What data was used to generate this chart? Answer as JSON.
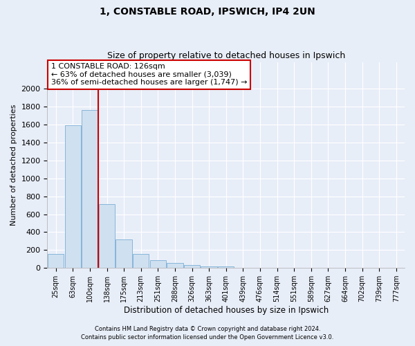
{
  "title1": "1, CONSTABLE ROAD, IPSWICH, IP4 2UN",
  "title2": "Size of property relative to detached houses in Ipswich",
  "xlabel": "Distribution of detached houses by size in Ipswich",
  "ylabel": "Number of detached properties",
  "categories": [
    "25sqm",
    "63sqm",
    "100sqm",
    "138sqm",
    "175sqm",
    "213sqm",
    "251sqm",
    "288sqm",
    "326sqm",
    "363sqm",
    "401sqm",
    "439sqm",
    "476sqm",
    "514sqm",
    "551sqm",
    "589sqm",
    "627sqm",
    "664sqm",
    "702sqm",
    "739sqm",
    "777sqm"
  ],
  "values": [
    160,
    1590,
    1760,
    710,
    315,
    160,
    85,
    55,
    30,
    20,
    15,
    5,
    5,
    2,
    2,
    1,
    1,
    1,
    0,
    0,
    0
  ],
  "bar_color": "#cfe0f0",
  "bar_edge_color": "#7aadd4",
  "vline_x_idx": 2.5,
  "vline_color": "#cc0000",
  "ylim": [
    0,
    2300
  ],
  "yticks": [
    0,
    200,
    400,
    600,
    800,
    1000,
    1200,
    1400,
    1600,
    1800,
    2000
  ],
  "annotation_text": "1 CONSTABLE ROAD: 126sqm\n← 63% of detached houses are smaller (3,039)\n36% of semi-detached houses are larger (1,747) →",
  "annot_box_color": "#ffffff",
  "annot_box_edge": "#cc0000",
  "footer1": "Contains HM Land Registry data © Crown copyright and database right 2024.",
  "footer2": "Contains public sector information licensed under the Open Government Licence v3.0.",
  "bg_color": "#e8eef8",
  "plot_bg_color": "#e8eef8",
  "grid_color": "#ffffff",
  "title1_fontsize": 10,
  "title2_fontsize": 9
}
